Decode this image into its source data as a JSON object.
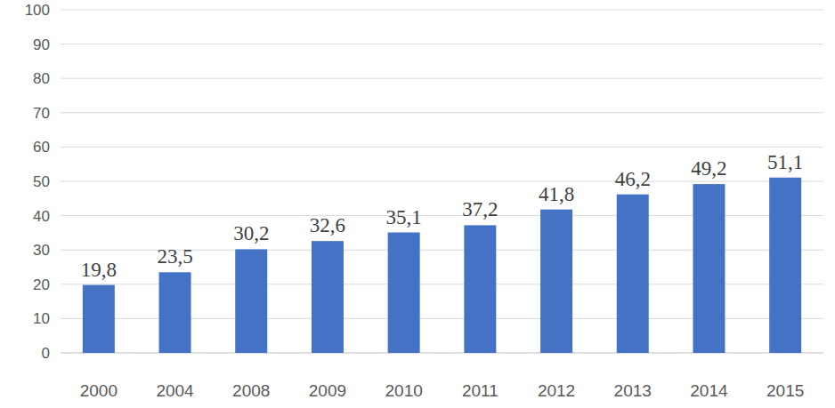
{
  "chart_data": {
    "type": "bar",
    "categories": [
      "2000",
      "2004",
      "2008",
      "2009",
      "2010",
      "2011",
      "2012",
      "2013",
      "2014",
      "2015"
    ],
    "values": [
      19.8,
      23.5,
      30.2,
      32.6,
      35.1,
      37.2,
      41.8,
      46.2,
      49.2,
      51.1
    ],
    "value_labels": [
      "19,8",
      "23,5",
      "30,2",
      "32,6",
      "35,1",
      "37,2",
      "41,8",
      "46,2",
      "49,2",
      "51,1"
    ],
    "data_labels": true,
    "color": "#4472c4",
    "ylim": [
      0,
      100
    ],
    "yticks": [
      0,
      10,
      20,
      30,
      40,
      50,
      60,
      70,
      80,
      90,
      100
    ],
    "grid": true
  }
}
